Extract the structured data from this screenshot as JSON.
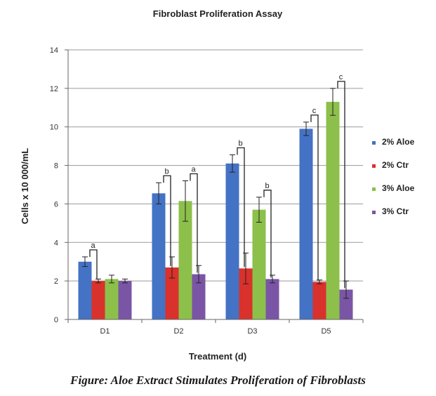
{
  "chart_data": {
    "type": "bar",
    "title": "Fibroblast Proliferation Assay",
    "xlabel": "Treatment (d)",
    "ylabel": "Cells x 10 000/mL",
    "categories": [
      "D1",
      "D2",
      "D3",
      "D5"
    ],
    "ylim": [
      0,
      14
    ],
    "yticks": [
      "0",
      "2",
      "4",
      "6",
      "8",
      "10",
      "12",
      "14"
    ],
    "grid": true,
    "legend_position": "right",
    "series": [
      {
        "name": "2% Aloe",
        "color": "#4472c4",
        "values": [
          3.0,
          6.55,
          8.1,
          9.9
        ],
        "errors": [
          0.25,
          0.55,
          0.45,
          0.35
        ]
      },
      {
        "name": "2% Ctr",
        "color": "#d9312c",
        "values": [
          2.0,
          2.7,
          2.65,
          1.95
        ],
        "errors": [
          0.1,
          0.55,
          0.8,
          0.1
        ]
      },
      {
        "name": "3% Aloe",
        "color": "#8cc04b",
        "values": [
          2.1,
          6.15,
          5.7,
          11.3
        ],
        "errors": [
          0.2,
          1.05,
          0.65,
          0.7
        ]
      },
      {
        "name": "3% Ctr",
        "color": "#7a55a5",
        "values": [
          2.0,
          2.35,
          2.1,
          1.55
        ],
        "errors": [
          0.1,
          0.45,
          0.2,
          0.45
        ]
      }
    ],
    "annotations": [
      {
        "text": "a",
        "category": "D1",
        "from_series": 0,
        "to_series": 1
      },
      {
        "text": "b",
        "category": "D2",
        "from_series": 0,
        "to_series": 1
      },
      {
        "text": "a",
        "category": "D2",
        "from_series": 2,
        "to_series": 3
      },
      {
        "text": "b",
        "category": "D3",
        "from_series": 0,
        "to_series": 1
      },
      {
        "text": "b",
        "category": "D3",
        "from_series": 2,
        "to_series": 3
      },
      {
        "text": "c",
        "category": "D5",
        "from_series": 0,
        "to_series": 1
      },
      {
        "text": "c",
        "category": "D5",
        "from_series": 2,
        "to_series": 3
      }
    ]
  },
  "caption": "Figure: Aloe Extract Stimulates Proliferation of Fibroblasts"
}
